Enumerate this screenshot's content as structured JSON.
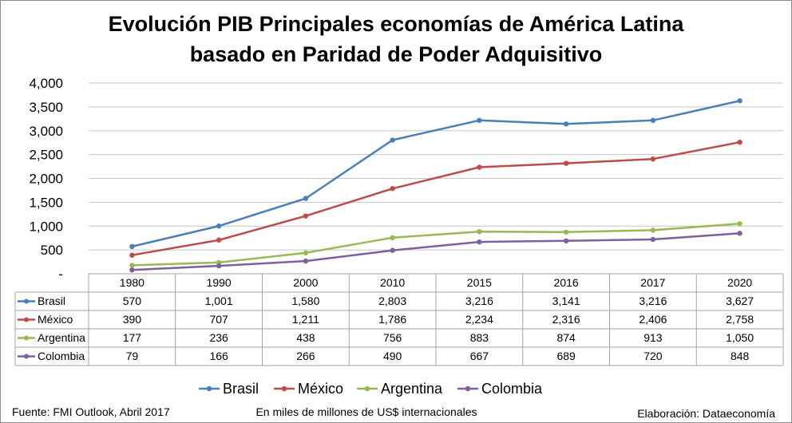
{
  "chart_data": {
    "type": "line",
    "title": [
      "Evolución PIB Principales economías de América Latina",
      "basado en Paridad de Poder Adquisitivo"
    ],
    "categories": [
      "1980",
      "1990",
      "2000",
      "2010",
      "2015",
      "2016",
      "2017",
      "2020"
    ],
    "ylim": [
      0,
      4000
    ],
    "yticks": [
      "-",
      "500",
      "1,000",
      "1,500",
      "2,000",
      "2,500",
      "3,000",
      "3,500",
      "4,000"
    ],
    "grid": true,
    "legend_position": "bottom",
    "data_table": true,
    "series": [
      {
        "name": "Brasil",
        "color": "#4a7ebb",
        "values": [
          570,
          1001,
          1580,
          2803,
          3216,
          3141,
          3216,
          3627
        ],
        "labels": [
          "570",
          "1,001",
          "1,580",
          "2,803",
          "3,216",
          "3,141",
          "3,216",
          "3,627"
        ]
      },
      {
        "name": "México",
        "color": "#be4b48",
        "values": [
          390,
          707,
          1211,
          1786,
          2234,
          2316,
          2406,
          2758
        ],
        "labels": [
          "390",
          "707",
          "1,211",
          "1,786",
          "2,234",
          "2,316",
          "2,406",
          "2,758"
        ]
      },
      {
        "name": "Argentina",
        "color": "#98b954",
        "values": [
          177,
          236,
          438,
          756,
          883,
          874,
          913,
          1050
        ],
        "labels": [
          "177",
          "236",
          "438",
          "756",
          "883",
          "874",
          "913",
          "1,050"
        ]
      },
      {
        "name": "Colombia",
        "color": "#7d60a0",
        "values": [
          79,
          166,
          266,
          490,
          667,
          689,
          720,
          848
        ],
        "labels": [
          "79",
          "166",
          "266",
          "490",
          "667",
          "689",
          "720",
          "848"
        ]
      }
    ]
  },
  "footer": {
    "source": "Fuente: FMI Outlook, Abril 2017",
    "units": "En miles de millones de US$ internacionales",
    "credit": "Elaboración: Dataeconomía"
  }
}
